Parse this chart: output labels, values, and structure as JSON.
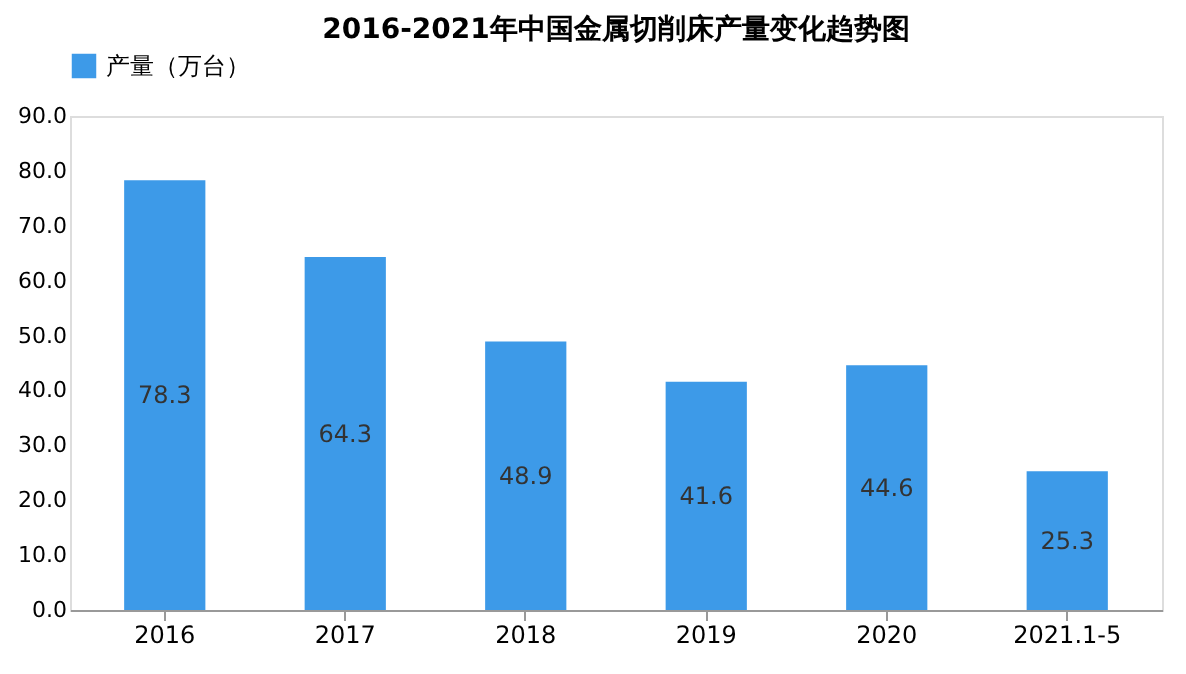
{
  "chart_data": {
    "type": "bar",
    "title": "2016-2021年中国金属切削床产量变化趋势图",
    "categories": [
      "2016",
      "2017",
      "2018",
      "2019",
      "2020",
      "2021.1-5"
    ],
    "series": [
      {
        "name": "产量（万台）",
        "color": "#3d9ae8",
        "values": [
          78.3,
          64.3,
          48.9,
          41.6,
          44.6,
          25.3
        ]
      }
    ],
    "ylim": [
      0,
      90
    ],
    "yticks": [
      {
        "value": 0,
        "label": "0.0"
      },
      {
        "value": 10,
        "label": "10.0"
      },
      {
        "value": 20,
        "label": "20.0"
      },
      {
        "value": 30,
        "label": "30.0"
      },
      {
        "value": 40,
        "label": "40.0"
      },
      {
        "value": 50,
        "label": "50.0"
      },
      {
        "value": 60,
        "label": "60.0"
      },
      {
        "value": 70,
        "label": "70.0"
      },
      {
        "value": 80,
        "label": "80.0"
      },
      {
        "value": 90,
        "label": "90.0"
      }
    ],
    "grid": false,
    "legend": "top",
    "data_labels": true
  }
}
